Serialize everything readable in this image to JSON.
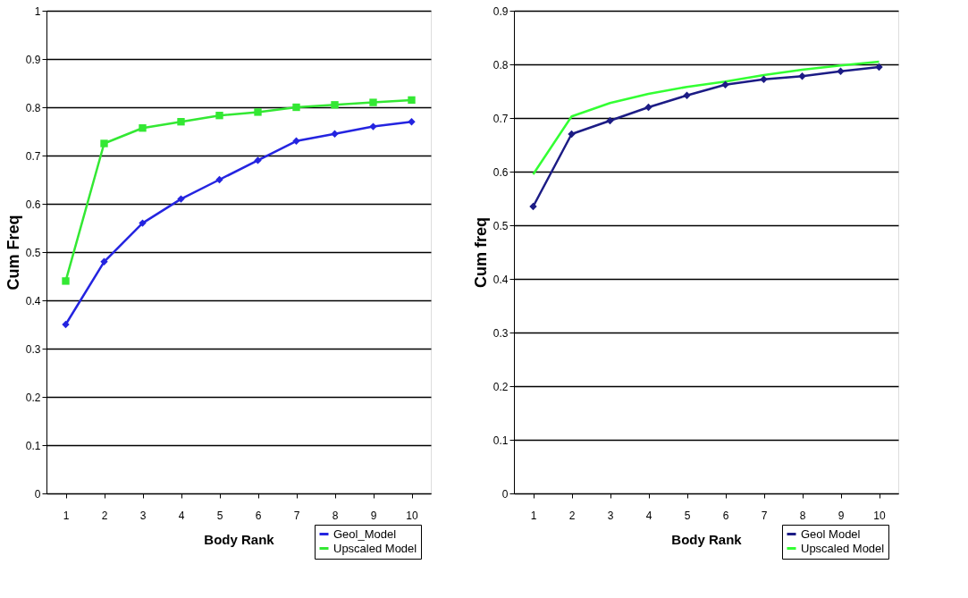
{
  "chart_data": [
    {
      "type": "line",
      "xlabel": "Body Rank",
      "ylabel": "Cum Freq",
      "categories": [
        "1",
        "2",
        "3",
        "4",
        "5",
        "6",
        "7",
        "8",
        "9",
        "10"
      ],
      "ylim": [
        0,
        1
      ],
      "yticks": [
        0,
        0.1,
        0.2,
        0.3,
        0.4,
        0.5,
        0.6,
        0.7,
        0.8,
        0.9,
        1
      ],
      "grid": "y",
      "legend": "bottom right",
      "series": [
        {
          "name": "Geol_Model",
          "color": "#2424e0",
          "marker": "diamond",
          "values": [
            0.35,
            0.48,
            0.56,
            0.61,
            0.65,
            0.69,
            0.73,
            0.745,
            0.76,
            0.77
          ]
        },
        {
          "name": "Upscaled Model",
          "color": "#33e833",
          "marker": "square",
          "values": [
            0.44,
            0.725,
            0.757,
            0.77,
            0.783,
            0.79,
            0.8,
            0.805,
            0.81,
            0.815
          ]
        }
      ]
    },
    {
      "type": "line",
      "xlabel": "Body Rank",
      "ylabel": "Cum freq",
      "categories": [
        "1",
        "2",
        "3",
        "4",
        "5",
        "6",
        "7",
        "8",
        "9",
        "10"
      ],
      "ylim": [
        0,
        0.9
      ],
      "yticks": [
        0,
        0.1,
        0.2,
        0.3,
        0.4,
        0.5,
        0.6,
        0.7,
        0.8,
        0.9
      ],
      "grid": "y",
      "legend": "bottom right",
      "series": [
        {
          "name": "Geol Model",
          "color": "#1c1c85",
          "marker": "diamond",
          "values": [
            0.535,
            0.67,
            0.695,
            0.72,
            0.742,
            0.762,
            0.772,
            0.778,
            0.787,
            0.795
          ]
        },
        {
          "name": "Upscaled Model",
          "color": "#33ff33",
          "marker": "none",
          "values": [
            0.595,
            0.703,
            0.728,
            0.745,
            0.758,
            0.768,
            0.78,
            0.79,
            0.798,
            0.805
          ]
        }
      ]
    }
  ]
}
